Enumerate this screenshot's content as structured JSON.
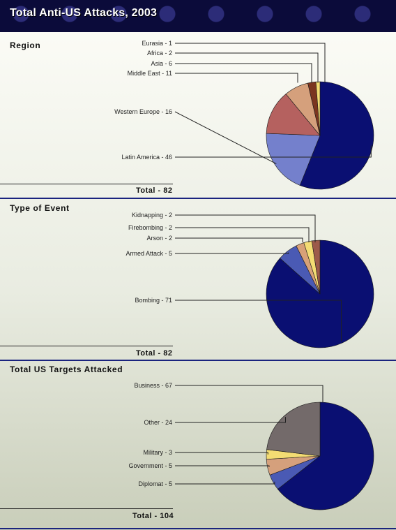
{
  "title": "Total Anti-US Attacks, 2003",
  "chart_data": [
    {
      "type": "pie",
      "title": "Region",
      "total_label": "Total - 82",
      "slices": [
        {
          "label": "Latin America - 46",
          "value": 46,
          "color": "#0a0f72"
        },
        {
          "label": "Western Europe - 16",
          "value": 16,
          "color": "#7480cc"
        },
        {
          "label": "Middle East - 11",
          "value": 11,
          "color": "#b5615f"
        },
        {
          "label": "Asia - 6",
          "value": 6,
          "color": "#d5a07c"
        },
        {
          "label": "Africa - 2",
          "value": 2,
          "color": "#7a3520"
        },
        {
          "label": "Eurasia - 1",
          "value": 1,
          "color": "#f3dc73"
        }
      ]
    },
    {
      "type": "pie",
      "title": "Type of Event",
      "total_label": "Total - 82",
      "slices": [
        {
          "label": "Bombing - 71",
          "value": 71,
          "color": "#0a0f72"
        },
        {
          "label": "Armed Attack - 5",
          "value": 5,
          "color": "#4a5ab4"
        },
        {
          "label": "Arson - 2",
          "value": 2,
          "color": "#d8a178"
        },
        {
          "label": "Firebombing - 2",
          "value": 2,
          "color": "#f3dc73"
        },
        {
          "label": "Kidnapping - 2",
          "value": 2,
          "color": "#9c5a4a"
        }
      ]
    },
    {
      "type": "pie",
      "title": "Total US Targets Attacked",
      "total_label": "Total - 104",
      "slices": [
        {
          "label": "Business - 67",
          "value": 67,
          "color": "#0a0f72"
        },
        {
          "label": "Diplomat - 5",
          "value": 5,
          "color": "#4a5ab4"
        },
        {
          "label": "Government - 5",
          "value": 5,
          "color": "#d5a07c"
        },
        {
          "label": "Military - 3",
          "value": 3,
          "color": "#f3dc73"
        },
        {
          "label": "Other - 24",
          "value": 24,
          "color": "#736a6a"
        }
      ]
    }
  ]
}
